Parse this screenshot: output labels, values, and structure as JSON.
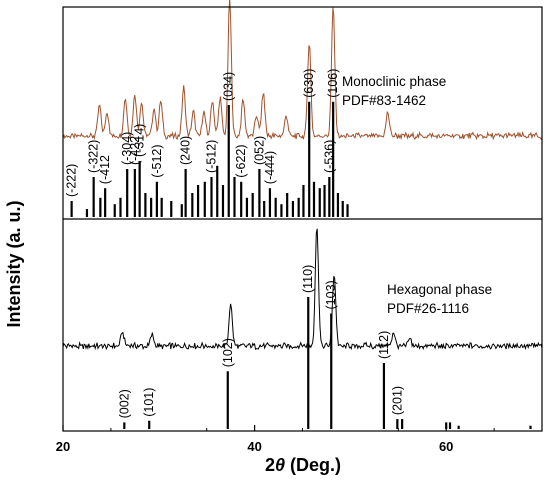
{
  "chart_data": {
    "type": "line",
    "x_range": [
      20,
      70
    ],
    "x_ticks": [
      20,
      40,
      60
    ],
    "xlabel_prefix": "2",
    "xlabel_theta": "θ",
    "xlabel_suffix": " (Deg.)",
    "ylabel": "Intensity (a. u.)",
    "panels": [
      {
        "annotation_lines": [
          "Monoclinic phase",
          "PDF#83-1462"
        ],
        "line_color": "#a0522d",
        "pattern": {
          "baseline": 0.18,
          "peaks": [
            {
              "x": 23.8,
              "h": 0.22
            },
            {
              "x": 24.6,
              "h": 0.18
            },
            {
              "x": 26.5,
              "h": 0.28
            },
            {
              "x": 27.5,
              "h": 0.3
            },
            {
              "x": 28.2,
              "h": 0.25
            },
            {
              "x": 29.5,
              "h": 0.2
            },
            {
              "x": 30.2,
              "h": 0.25
            },
            {
              "x": 32.6,
              "h": 0.35
            },
            {
              "x": 33.6,
              "h": 0.18
            },
            {
              "x": 34.7,
              "h": 0.18
            },
            {
              "x": 35.6,
              "h": 0.26
            },
            {
              "x": 36.4,
              "h": 0.28
            },
            {
              "x": 37.4,
              "h": 1.0
            },
            {
              "x": 38.8,
              "h": 0.26
            },
            {
              "x": 40.2,
              "h": 0.15
            },
            {
              "x": 40.9,
              "h": 0.32
            },
            {
              "x": 43.3,
              "h": 0.15
            },
            {
              "x": 45.7,
              "h": 0.68
            },
            {
              "x": 48.2,
              "h": 0.94
            },
            {
              "x": 53.9,
              "h": 0.17
            }
          ]
        },
        "reference_lines": [
          {
            "x": 20.9,
            "h": 0.1
          },
          {
            "x": 22.5,
            "h": 0.05
          },
          {
            "x": 23.2,
            "h": 0.25
          },
          {
            "x": 23.9,
            "h": 0.12
          },
          {
            "x": 24.4,
            "h": 0.18
          },
          {
            "x": 25.4,
            "h": 0.08
          },
          {
            "x": 26.0,
            "h": 0.12
          },
          {
            "x": 26.7,
            "h": 0.3
          },
          {
            "x": 27.5,
            "h": 0.3
          },
          {
            "x": 28.0,
            "h": 0.35
          },
          {
            "x": 28.6,
            "h": 0.15
          },
          {
            "x": 29.2,
            "h": 0.12
          },
          {
            "x": 29.8,
            "h": 0.22
          },
          {
            "x": 30.3,
            "h": 0.12
          },
          {
            "x": 31.3,
            "h": 0.1
          },
          {
            "x": 32.4,
            "h": 0.08
          },
          {
            "x": 32.8,
            "h": 0.3
          },
          {
            "x": 33.5,
            "h": 0.15
          },
          {
            "x": 34.1,
            "h": 0.2
          },
          {
            "x": 34.8,
            "h": 0.22
          },
          {
            "x": 35.5,
            "h": 0.25
          },
          {
            "x": 36.1,
            "h": 0.32
          },
          {
            "x": 36.7,
            "h": 0.2
          },
          {
            "x": 37.3,
            "h": 0.7
          },
          {
            "x": 37.9,
            "h": 0.25
          },
          {
            "x": 38.6,
            "h": 0.22
          },
          {
            "x": 39.2,
            "h": 0.12
          },
          {
            "x": 39.8,
            "h": 0.15
          },
          {
            "x": 40.5,
            "h": 0.3
          },
          {
            "x": 41.0,
            "h": 0.1
          },
          {
            "x": 41.6,
            "h": 0.18
          },
          {
            "x": 42.2,
            "h": 0.12
          },
          {
            "x": 42.8,
            "h": 0.08
          },
          {
            "x": 43.4,
            "h": 0.15
          },
          {
            "x": 44.0,
            "h": 0.1
          },
          {
            "x": 44.6,
            "h": 0.12
          },
          {
            "x": 45.1,
            "h": 0.2
          },
          {
            "x": 45.7,
            "h": 0.72
          },
          {
            "x": 46.2,
            "h": 0.22
          },
          {
            "x": 46.8,
            "h": 0.18
          },
          {
            "x": 47.3,
            "h": 0.2
          },
          {
            "x": 47.8,
            "h": 0.25
          },
          {
            "x": 48.2,
            "h": 0.72
          },
          {
            "x": 48.7,
            "h": 0.15
          },
          {
            "x": 49.2,
            "h": 0.1
          },
          {
            "x": 49.7,
            "h": 0.08
          }
        ],
        "hkl_labels": [
          {
            "x": 20.9,
            "label": "(-222)"
          },
          {
            "x": 23.2,
            "label": "(-322)"
          },
          {
            "x": 24.4,
            "label": "(-412"
          },
          {
            "x": 26.7,
            "label": "(-304)"
          },
          {
            "x": 27.5,
            "label": "(-422"
          },
          {
            "x": 28.0,
            "label": "(-314)"
          },
          {
            "x": 29.8,
            "label": "(-512)"
          },
          {
            "x": 32.8,
            "label": "(240)"
          },
          {
            "x": 35.5,
            "label": "(-512)"
          },
          {
            "x": 37.3,
            "label": "(034)"
          },
          {
            "x": 38.6,
            "label": "(-622)"
          },
          {
            "x": 40.5,
            "label": "(052)"
          },
          {
            "x": 41.6,
            "label": "(-444)"
          },
          {
            "x": 45.7,
            "label": "(630)"
          },
          {
            "x": 47.8,
            "label": "(-536)"
          },
          {
            "x": 48.2,
            "label": "(106)"
          }
        ]
      },
      {
        "annotation_lines": [
          "Hexagonal phase",
          "PDF#26-1116"
        ],
        "line_color": "#000000",
        "pattern": {
          "baseline": 0.12,
          "peaks": [
            {
              "x": 26.2,
              "h": 0.1
            },
            {
              "x": 29.3,
              "h": 0.08
            },
            {
              "x": 37.5,
              "h": 0.3
            },
            {
              "x": 46.5,
              "h": 0.85
            },
            {
              "x": 48.3,
              "h": 0.52
            },
            {
              "x": 54.5,
              "h": 0.1
            },
            {
              "x": 56.2,
              "h": 0.05
            }
          ]
        },
        "reference_lines": [
          {
            "x": 26.4,
            "h": 0.04
          },
          {
            "x": 29.0,
            "h": 0.05
          },
          {
            "x": 37.2,
            "h": 0.35
          },
          {
            "x": 45.6,
            "h": 0.8
          },
          {
            "x": 48.0,
            "h": 0.7
          },
          {
            "x": 53.5,
            "h": 0.4
          },
          {
            "x": 54.9,
            "h": 0.06
          },
          {
            "x": 55.4,
            "h": 0.06
          },
          {
            "x": 60.0,
            "h": 0.04
          },
          {
            "x": 60.4,
            "h": 0.04
          },
          {
            "x": 61.3,
            "h": 0.02
          },
          {
            "x": 68.8,
            "h": 0.02
          }
        ],
        "hkl_labels": [
          {
            "x": 26.4,
            "label": "(002)"
          },
          {
            "x": 29.0,
            "label": "(101)"
          },
          {
            "x": 37.2,
            "label": "(102)"
          },
          {
            "x": 45.6,
            "label": "(110)"
          },
          {
            "x": 48.0,
            "label": "(103)"
          },
          {
            "x": 53.5,
            "label": "(112)"
          },
          {
            "x": 54.9,
            "label": "(201)"
          }
        ]
      }
    ]
  }
}
